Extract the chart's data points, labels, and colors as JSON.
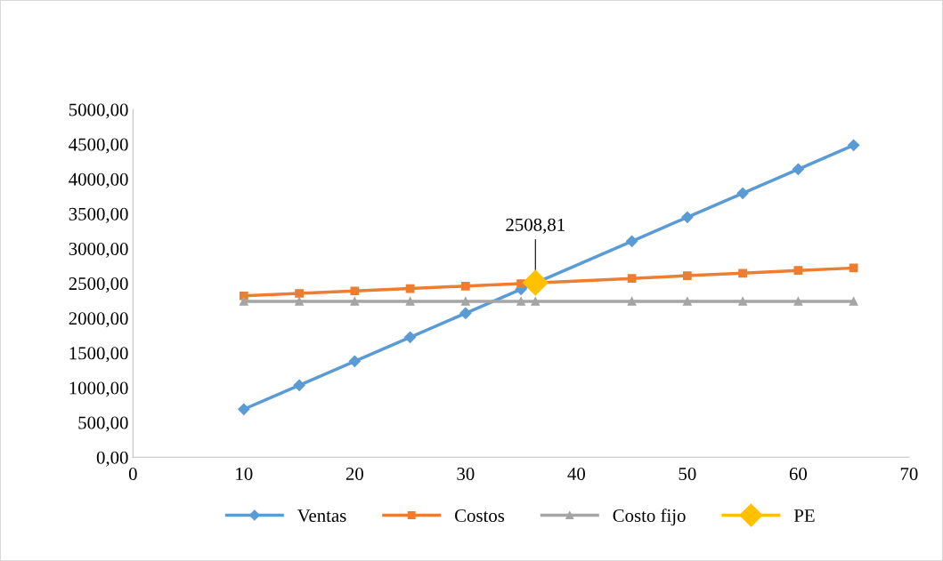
{
  "chart_data": {
    "type": "line",
    "series": [
      {
        "name": "Ventas",
        "color": "#5b9bd5",
        "marker": "diamond",
        "x": [
          10,
          15,
          20,
          25,
          30,
          35,
          45,
          50,
          55,
          60,
          65
        ],
        "values": [
          690,
          1035,
          1380,
          1725,
          2070,
          2415,
          3105,
          3450,
          3795,
          4140,
          4485
        ]
      },
      {
        "name": "Costos",
        "color": "#ed7d31",
        "marker": "square",
        "x": [
          10,
          15,
          20,
          25,
          30,
          35,
          45,
          50,
          55,
          60,
          65
        ],
        "values": [
          2320,
          2355,
          2390,
          2425,
          2460,
          2495,
          2570,
          2610,
          2645,
          2685,
          2720
        ]
      },
      {
        "name": "Costo fijo",
        "color": "#a5a5a5",
        "marker": "triangle",
        "x": [
          10,
          15,
          20,
          25,
          30,
          35,
          36.3,
          45,
          50,
          55,
          60,
          65
        ],
        "values": [
          2240,
          2240,
          2240,
          2240,
          2240,
          2240,
          2240,
          2240,
          2240,
          2240,
          2240,
          2240
        ]
      },
      {
        "name": "PE",
        "color": "#ffc000",
        "marker": "diamond",
        "x": [
          36.3
        ],
        "values": [
          2508.81
        ]
      }
    ],
    "annotations": [
      {
        "text": "2508,81",
        "x": 36.3,
        "y": 2508.81
      }
    ],
    "xlim": [
      0,
      70
    ],
    "xticks": [
      0,
      10,
      20,
      30,
      40,
      50,
      60,
      70
    ],
    "ylim": [
      0,
      5000
    ],
    "yticks": [
      {
        "value": 0,
        "label": "0,00"
      },
      {
        "value": 500,
        "label": "500,00"
      },
      {
        "value": 1000,
        "label": "1000,00"
      },
      {
        "value": 1500,
        "label": "1500,00"
      },
      {
        "value": 2000,
        "label": "2000,00"
      },
      {
        "value": 2500,
        "label": "2500,00"
      },
      {
        "value": 3000,
        "label": "3000,00"
      },
      {
        "value": 3500,
        "label": "3500,00"
      },
      {
        "value": 4000,
        "label": "4000,00"
      },
      {
        "value": 4500,
        "label": "4500,00"
      },
      {
        "value": 5000,
        "label": "5000,00"
      }
    ],
    "grid": false,
    "legend": "bottom"
  }
}
